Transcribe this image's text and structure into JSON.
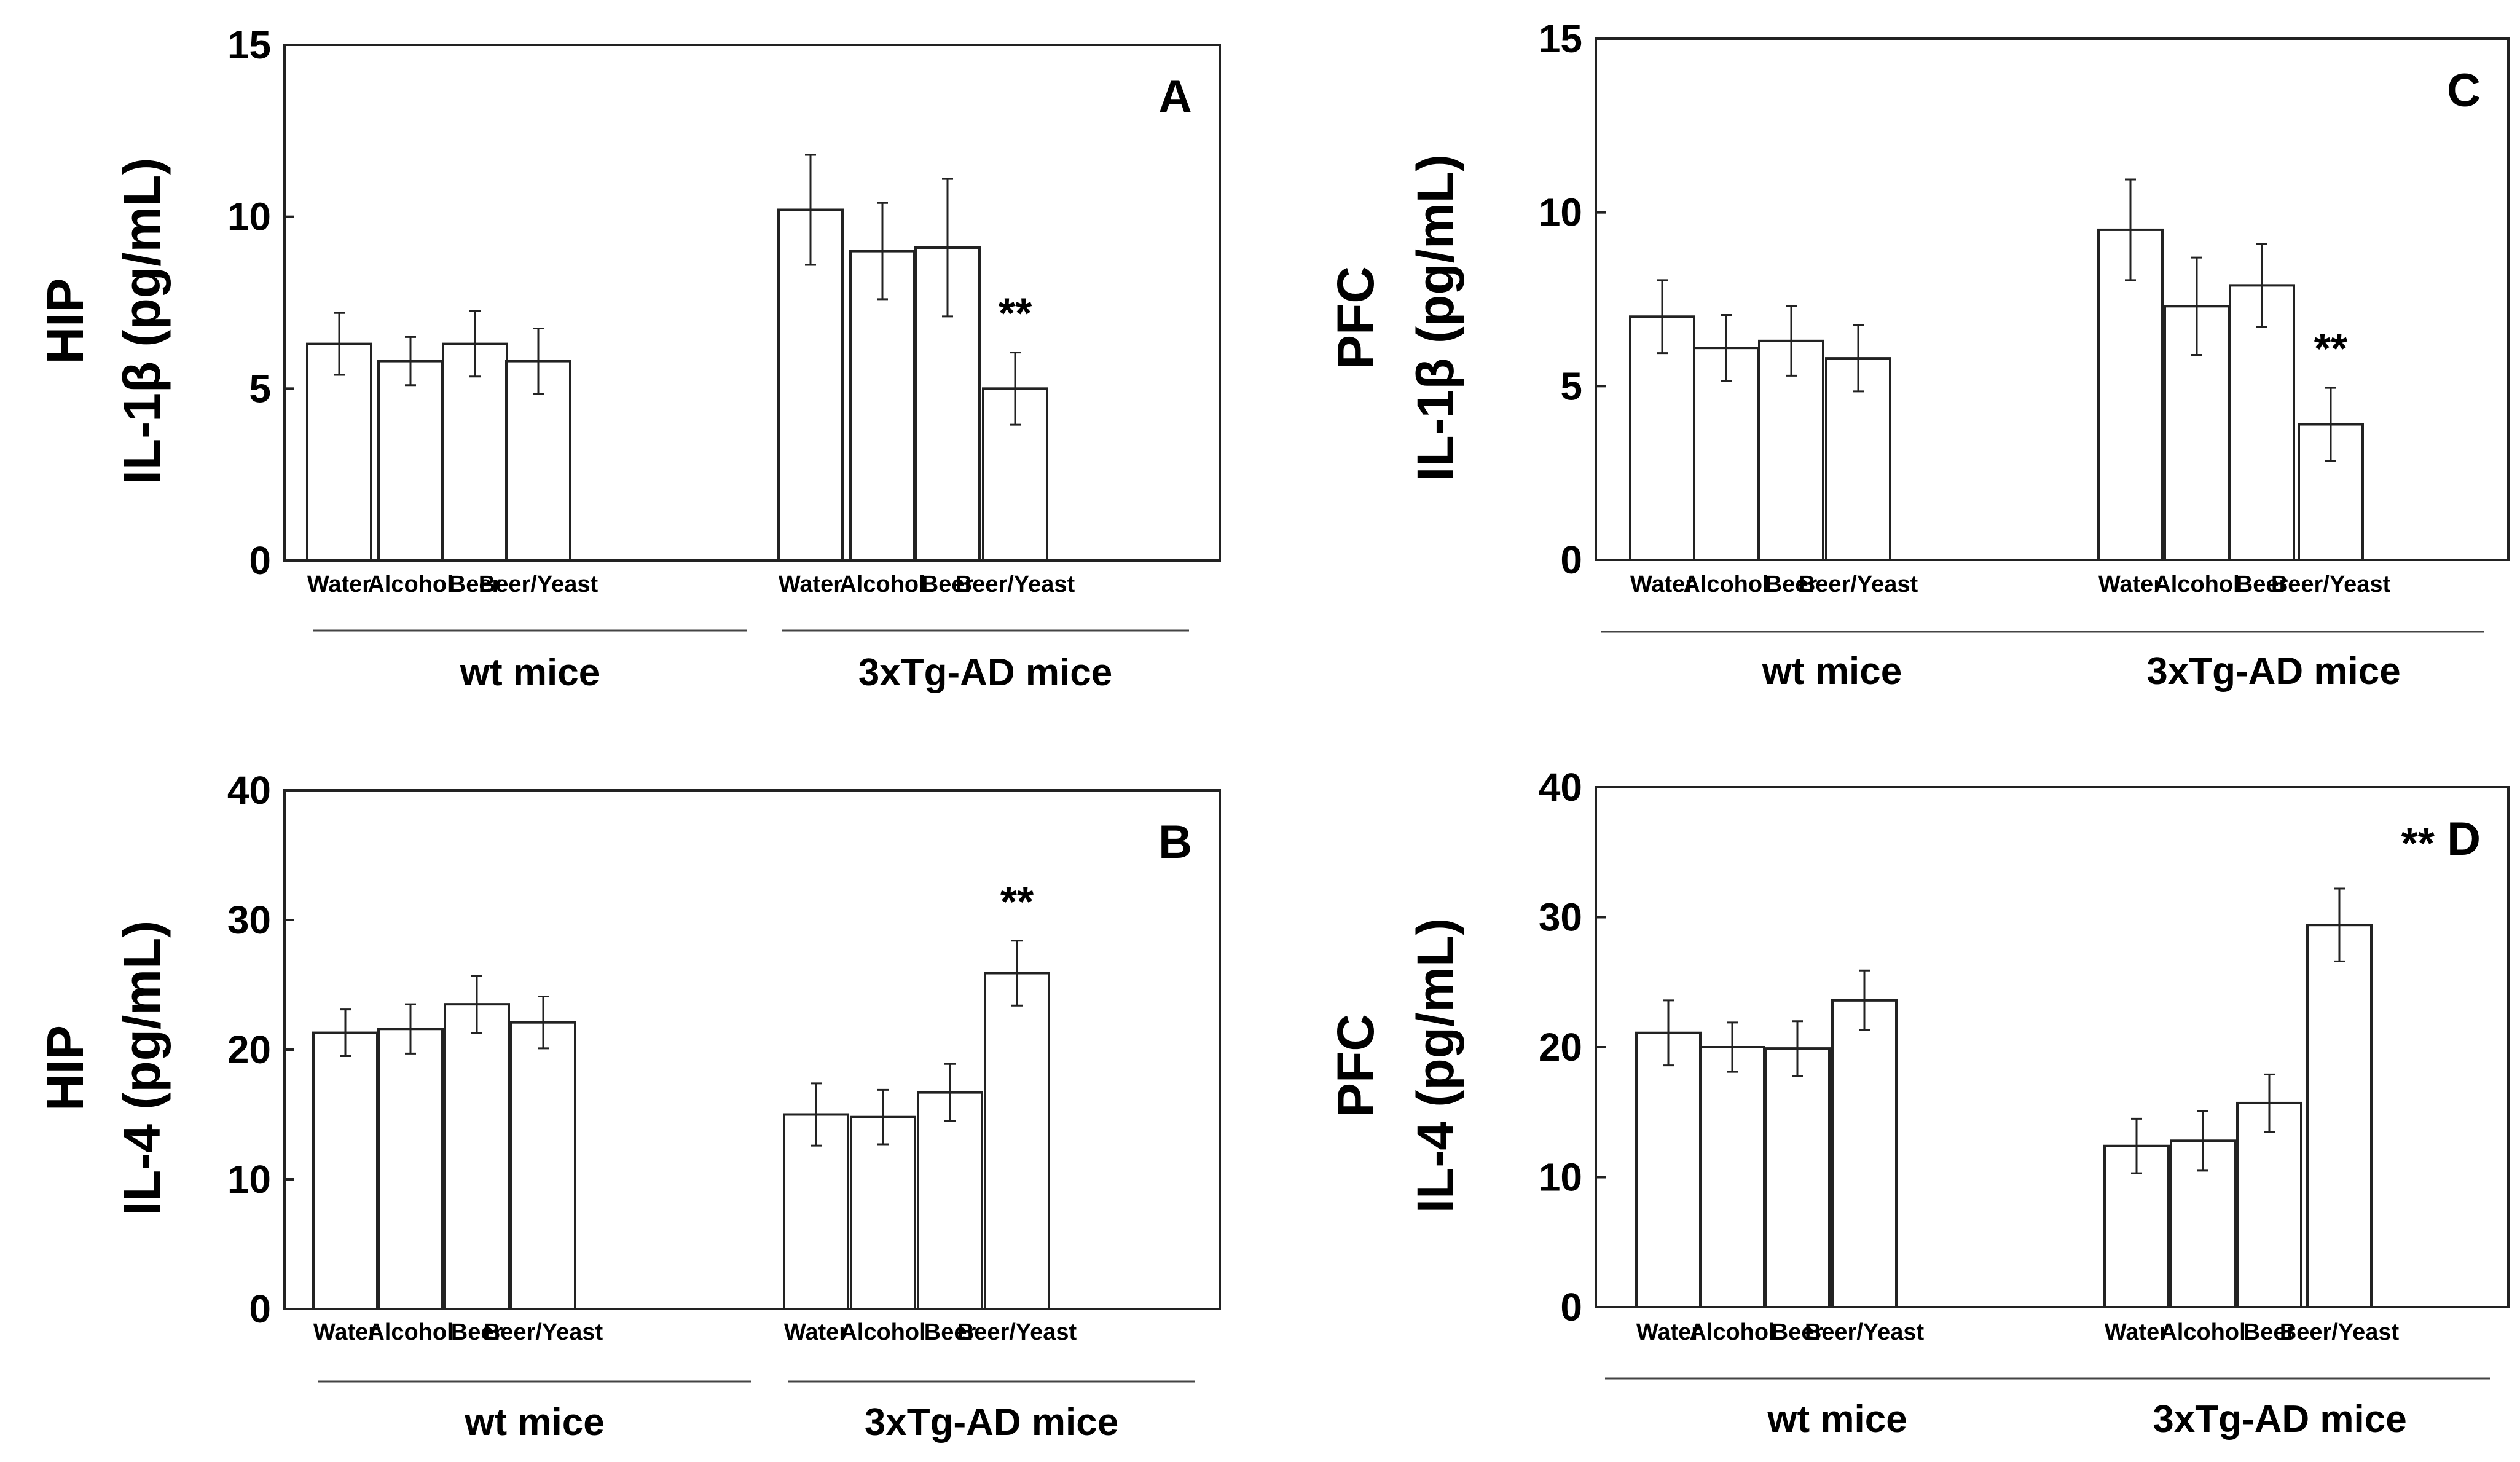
{
  "chart_data": [
    {
      "type": "bar",
      "panel": "A",
      "region": "HIP",
      "ylabel": "IL-1β (pg/mL)",
      "ylim": [
        0,
        15
      ],
      "yticks": [
        "0",
        "5",
        "10",
        "15"
      ],
      "groups": [
        {
          "label": "wt mice",
          "categories": [
            "Water",
            "Alcohol",
            "Beer",
            "Beer/Yeast"
          ],
          "values": [
            6.3,
            5.8,
            6.3,
            5.8
          ],
          "errors": [
            0.9,
            0.7,
            0.95,
            0.95
          ],
          "sig": [
            "",
            "",
            "",
            ""
          ]
        },
        {
          "label": "3xTg-AD mice",
          "categories": [
            "Water",
            "Alcohol",
            "Beer",
            "Beer/Yeast"
          ],
          "values": [
            10.2,
            9.0,
            9.1,
            5.0
          ],
          "errors": [
            1.6,
            1.4,
            2.0,
            1.05
          ],
          "sig": [
            "",
            "",
            "",
            "**"
          ]
        }
      ]
    },
    {
      "type": "bar",
      "panel": "B",
      "region": "HIP",
      "ylabel": "IL-4 (pg/mL)",
      "ylim": [
        0,
        40
      ],
      "yticks": [
        "0",
        "10",
        "20",
        "30",
        "40"
      ],
      "groups": [
        {
          "label": "wt mice",
          "categories": [
            "Water",
            "Alcohol",
            "Beer",
            "Beer/Yeast"
          ],
          "values": [
            21.3,
            21.6,
            23.5,
            22.1
          ],
          "errors": [
            1.8,
            1.9,
            2.2,
            2.0
          ],
          "sig": [
            "",
            "",
            "",
            ""
          ]
        },
        {
          "label": "3xTg-AD mice",
          "categories": [
            "Water",
            "Alcohol",
            "Beer",
            "Beer/Yeast"
          ],
          "values": [
            15.0,
            14.8,
            16.7,
            25.9
          ],
          "errors": [
            2.4,
            2.1,
            2.2,
            2.5
          ],
          "sig": [
            "",
            "",
            "",
            "**"
          ]
        }
      ]
    },
    {
      "type": "bar",
      "panel": "C",
      "region": "PFC",
      "ylabel": "IL-1β (pg/mL)",
      "ylim": [
        0,
        15
      ],
      "yticks": [
        "0",
        "5",
        "10",
        "15"
      ],
      "groups": [
        {
          "label": "wt mice",
          "categories": [
            "Water",
            "Alcohol",
            "Beer",
            "Beer/Yeast"
          ],
          "values": [
            7.0,
            6.1,
            6.3,
            5.8
          ],
          "errors": [
            1.05,
            0.95,
            1.0,
            0.95
          ],
          "sig": [
            "",
            "",
            "",
            ""
          ]
        },
        {
          "label": "3xTg-AD mice",
          "categories": [
            "Water",
            "Alcohol",
            "Beer",
            "Beer/Yeast"
          ],
          "values": [
            9.5,
            7.3,
            7.9,
            3.9
          ],
          "errors": [
            1.45,
            1.4,
            1.2,
            1.05
          ],
          "sig": [
            "",
            "",
            "",
            "**"
          ]
        }
      ]
    },
    {
      "type": "bar",
      "panel": "D",
      "region": "PFC",
      "ylabel": "IL-4 (pg/mL)",
      "ylim": [
        0,
        40
      ],
      "yticks": [
        "0",
        "10",
        "20",
        "30",
        "40"
      ],
      "groups": [
        {
          "label": "wt mice",
          "categories": [
            "Water",
            "Alcohol",
            "Beer",
            "Beer/Yeast"
          ],
          "values": [
            21.1,
            20.0,
            19.9,
            23.6
          ],
          "errors": [
            2.5,
            1.9,
            2.1,
            2.3
          ],
          "sig": [
            "",
            "",
            "",
            ""
          ]
        },
        {
          "label": "3xTg-AD mice",
          "categories": [
            "Water",
            "Alcohol",
            "Beer",
            "Beer/Yeast"
          ],
          "values": [
            12.4,
            12.8,
            15.7,
            29.4
          ],
          "errors": [
            2.1,
            2.3,
            2.2,
            2.8
          ],
          "sig": [
            "",
            "",
            "",
            "**"
          ]
        }
      ]
    }
  ]
}
